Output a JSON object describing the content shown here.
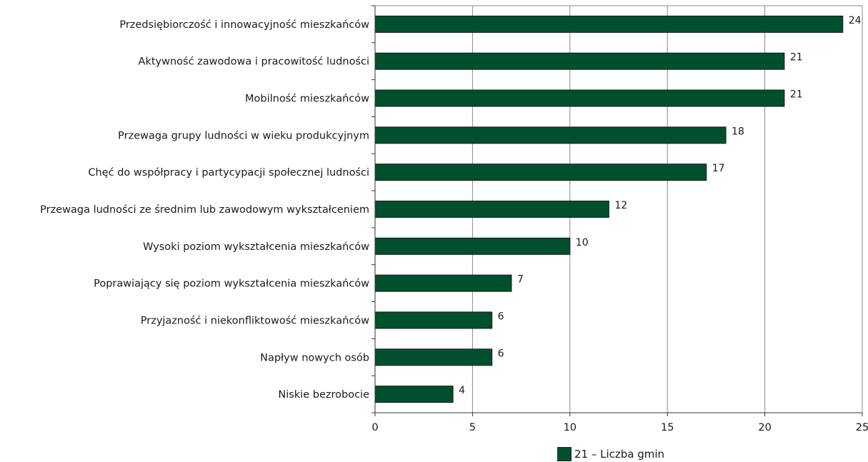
{
  "chart_data": {
    "type": "bar",
    "orientation": "horizontal",
    "categories": [
      "Przedsiębiorczość i innowacyjność mieszkańców",
      "Aktywność zawodowa i pracowitość ludności",
      "Mobilność mieszkańców",
      "Przewaga grupy ludności w wieku produkcyjnym",
      "Chęć do współpracy i partycypacji społecznej ludności",
      "Przewaga ludności ze średnim lub zawodowym wykształceniem",
      "Wysoki poziom wykształcenia mieszkańców",
      "Poprawiający się poziom wykształcenia mieszkańców",
      "Przyjazność i niekonfliktowość mieszkańców",
      "Napływ nowych osób",
      "Niskie bezrobocie"
    ],
    "values": [
      24,
      21,
      21,
      18,
      17,
      12,
      10,
      7,
      6,
      6,
      4
    ],
    "xlim": [
      0,
      25
    ],
    "xticks": [
      0,
      5,
      10,
      15,
      20,
      25
    ],
    "grid": "vertical",
    "bar_color": "#005030",
    "legend": {
      "label": "21 – Liczba gmin",
      "placement": "bottom"
    }
  }
}
